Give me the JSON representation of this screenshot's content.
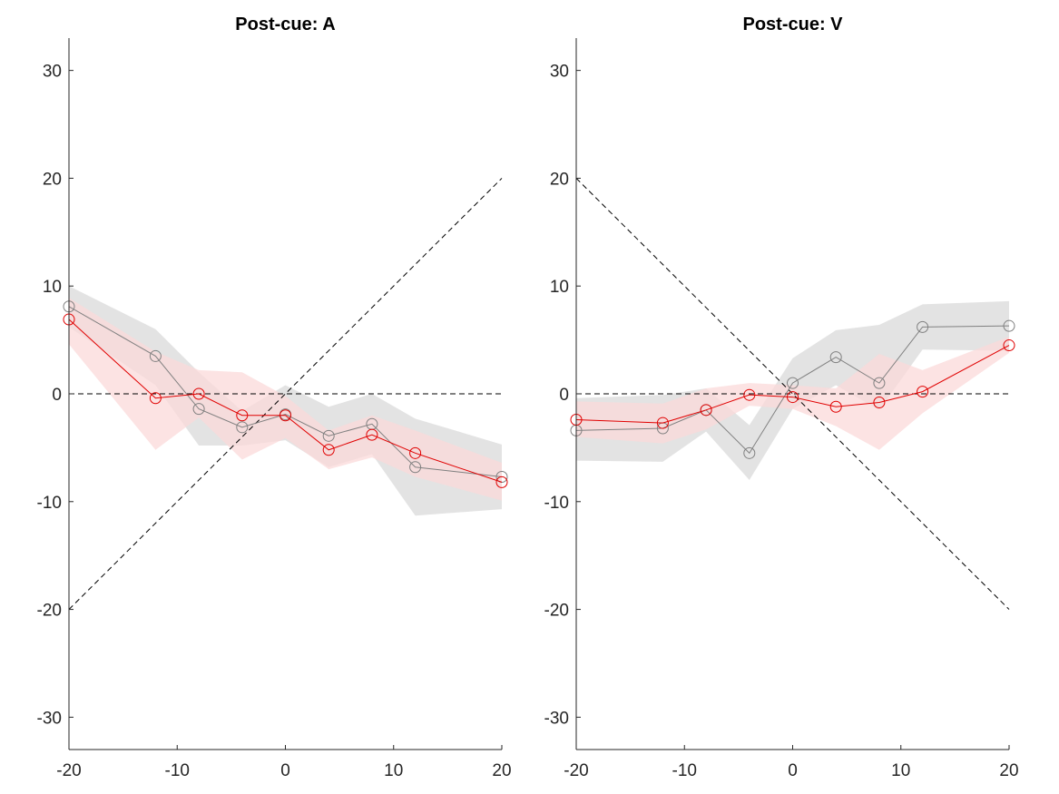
{
  "chart_data": [
    {
      "type": "line",
      "title": "Post-cue: A",
      "xlabel": "",
      "ylabel": "",
      "xlim": [
        -20,
        20
      ],
      "ylim": [
        -33,
        33
      ],
      "xticks": [
        -20,
        -10,
        0,
        10,
        20
      ],
      "yticks": [
        -30,
        -20,
        -10,
        0,
        10,
        20,
        30
      ],
      "grid": false,
      "reference_lines": [
        {
          "kind": "identity",
          "x": [
            -20,
            20
          ],
          "y": [
            -20,
            20
          ],
          "style": "dashed",
          "color": "#000000"
        },
        {
          "kind": "zero",
          "x": [
            -20,
            20
          ],
          "y": [
            0,
            0
          ],
          "style": "dashed",
          "color": "#000000"
        }
      ],
      "series": [
        {
          "color": "#808080",
          "band_color": "#d9d9d9",
          "x": [
            -20,
            -12,
            -8,
            -4,
            0,
            4,
            8,
            12,
            20
          ],
          "y": [
            8.1,
            3.5,
            -1.4,
            -3.1,
            -1.9,
            -3.9,
            -2.8,
            -6.8,
            -7.7
          ],
          "upper": [
            10.0,
            6.0,
            2.0,
            -1.6,
            0.8,
            -1.2,
            0.0,
            -2.3,
            -4.7
          ],
          "lower": [
            6.2,
            0.8,
            -4.8,
            -4.8,
            -4.3,
            -6.8,
            -5.6,
            -11.3,
            -10.7
          ]
        },
        {
          "color": "#e00000",
          "band_color": "#fbdada",
          "x": [
            -20,
            -12,
            -8,
            -4,
            0,
            4,
            8,
            12,
            20
          ],
          "y": [
            6.9,
            -0.4,
            0.0,
            -2.0,
            -2.0,
            -5.2,
            -3.8,
            -5.5,
            -8.2
          ],
          "upper": [
            8.9,
            3.9,
            2.2,
            2.0,
            -0.2,
            -3.4,
            -2.0,
            -3.4,
            -6.4
          ],
          "lower": [
            4.6,
            -5.2,
            -2.2,
            -6.1,
            -4.1,
            -7.0,
            -5.9,
            -7.7,
            -9.9
          ]
        }
      ]
    },
    {
      "type": "line",
      "title": "Post-cue: V",
      "xlabel": "",
      "ylabel": "",
      "xlim": [
        -20,
        20
      ],
      "ylim": [
        -33,
        33
      ],
      "xticks": [
        -20,
        -10,
        0,
        10,
        20
      ],
      "yticks": [
        -30,
        -20,
        -10,
        0,
        10,
        20,
        30
      ],
      "grid": false,
      "reference_lines": [
        {
          "kind": "anti-identity",
          "x": [
            -20,
            20
          ],
          "y": [
            20,
            -20
          ],
          "style": "dashed",
          "color": "#000000"
        },
        {
          "kind": "zero",
          "x": [
            -20,
            20
          ],
          "y": [
            0,
            0
          ],
          "style": "dashed",
          "color": "#000000"
        }
      ],
      "series": [
        {
          "color": "#808080",
          "band_color": "#d9d9d9",
          "x": [
            -20,
            -12,
            -8,
            -4,
            0,
            4,
            8,
            12,
            20
          ],
          "y": [
            -3.4,
            -3.2,
            -1.5,
            -5.5,
            1.0,
            3.4,
            1.0,
            6.2,
            6.3
          ],
          "upper": [
            -0.4,
            -0.1,
            0.5,
            -2.9,
            3.3,
            5.9,
            6.4,
            8.3,
            8.6
          ],
          "lower": [
            -6.2,
            -6.3,
            -3.5,
            -8.0,
            -1.4,
            0.8,
            -1.5,
            4.1,
            4.0
          ]
        },
        {
          "color": "#e00000",
          "band_color": "#fbdada",
          "x": [
            -20,
            -12,
            -8,
            -4,
            0,
            4,
            8,
            12,
            20
          ],
          "y": [
            -2.4,
            -2.7,
            -1.5,
            -0.1,
            -0.3,
            -1.2,
            -0.8,
            0.2,
            4.5
          ],
          "upper": [
            -0.7,
            -0.9,
            0.5,
            1.0,
            0.8,
            0.5,
            3.7,
            2.2,
            5.3
          ],
          "lower": [
            -4.0,
            -4.6,
            -3.3,
            -1.1,
            -1.4,
            -3.0,
            -5.2,
            -1.8,
            3.8
          ]
        }
      ]
    }
  ]
}
